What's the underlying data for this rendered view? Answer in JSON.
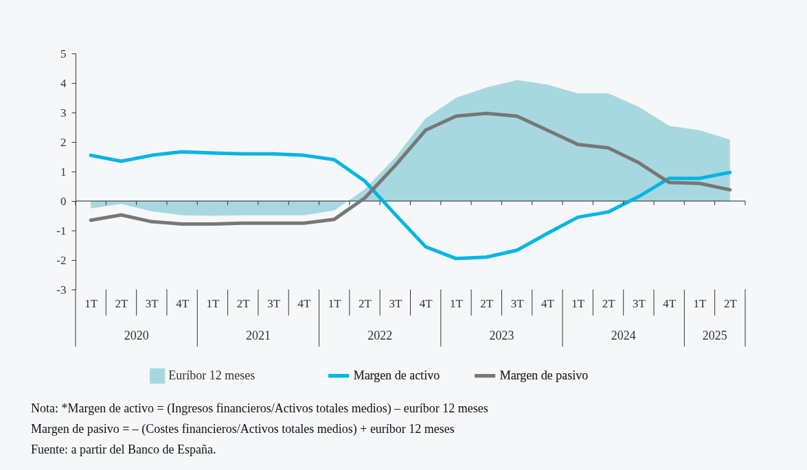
{
  "chart_data": {
    "type": "line",
    "categories": [
      "1T",
      "2T",
      "3T",
      "4T",
      "1T",
      "2T",
      "3T",
      "4T",
      "1T",
      "2T",
      "3T",
      "4T",
      "1T",
      "2T",
      "3T",
      "4T",
      "1T",
      "2T",
      "3T",
      "4T",
      "1T",
      "2T"
    ],
    "series": [
      {
        "name": "Euríbor 12 meses",
        "type": "area",
        "color": "#a8d8df",
        "values": [
          -0.25,
          -0.1,
          -0.35,
          -0.48,
          -0.5,
          -0.48,
          -0.48,
          -0.48,
          -0.32,
          0.4,
          1.47,
          2.8,
          3.5,
          3.85,
          4.1,
          3.95,
          3.65,
          3.65,
          3.2,
          2.55,
          2.4,
          2.08
        ]
      },
      {
        "name": "Margen de activo",
        "color": "#00b5e2",
        "values": [
          1.55,
          1.35,
          1.55,
          1.67,
          1.63,
          1.6,
          1.6,
          1.55,
          1.4,
          0.68,
          -0.45,
          -1.55,
          -1.95,
          -1.9,
          -1.67,
          -1.1,
          -0.55,
          -0.37,
          0.15,
          0.77,
          0.77,
          0.97
        ]
      },
      {
        "name": "Margen de pasivo",
        "color": "#777777",
        "values": [
          -0.65,
          -0.47,
          -0.7,
          -0.78,
          -0.78,
          -0.75,
          -0.75,
          -0.75,
          -0.62,
          0.1,
          1.2,
          2.4,
          2.88,
          2.97,
          2.88,
          2.4,
          1.92,
          1.8,
          1.3,
          0.63,
          0.6,
          0.38
        ]
      }
    ],
    "ylim": [
      -3,
      5
    ],
    "yticks": [
      -3,
      -2,
      -1,
      0,
      1,
      2,
      3,
      4,
      5
    ],
    "grid": false,
    "legend": "bottom",
    "ref_lines": [
      {
        "axis": "y",
        "value": 0,
        "color": "#222222"
      }
    ],
    "annotations": [
      "2020",
      "2021",
      "2022",
      "2023",
      "2024",
      "2025",
      "Nota: *Margen de activo = (Ingresos financieros/Activos totales medios) – euríbor 12 meses",
      "Margen de pasivo = – (Costes financieros/Activos totales medios) + euríbor 12 meses",
      "Fuente: a partir del Banco de España."
    ]
  }
}
